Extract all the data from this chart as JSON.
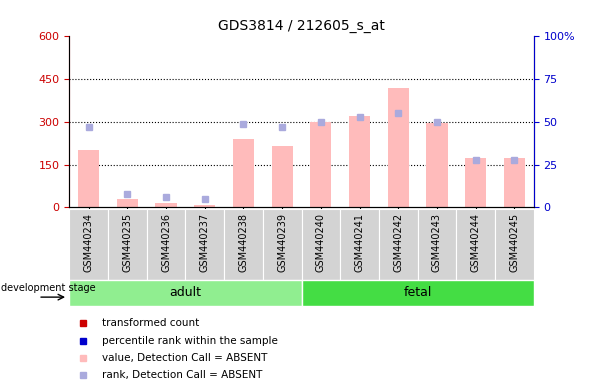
{
  "title": "GDS3814 / 212605_s_at",
  "samples": [
    "GSM440234",
    "GSM440235",
    "GSM440236",
    "GSM440237",
    "GSM440238",
    "GSM440239",
    "GSM440240",
    "GSM440241",
    "GSM440242",
    "GSM440243",
    "GSM440244",
    "GSM440245"
  ],
  "transformed_count": [
    200,
    30,
    15,
    10,
    240,
    215,
    300,
    320,
    420,
    295,
    175,
    175
  ],
  "percentile_rank": [
    47,
    8,
    6,
    5,
    49,
    47,
    50,
    53,
    55,
    50,
    28,
    28
  ],
  "groups": [
    {
      "label": "adult",
      "start": 0,
      "end": 6,
      "color": "#90ee90"
    },
    {
      "label": "fetal",
      "start": 6,
      "end": 12,
      "color": "#44dd44"
    }
  ],
  "bar_color_absent": "#ffbbbb",
  "rank_color_absent": "#aaaadd",
  "ylim_left": [
    0,
    600
  ],
  "ylim_right": [
    0,
    100
  ],
  "yticks_left": [
    0,
    150,
    300,
    450,
    600
  ],
  "yticks_right": [
    0,
    25,
    50,
    75,
    100
  ],
  "ytick_labels_left": [
    "0",
    "150",
    "300",
    "450",
    "600"
  ],
  "ytick_labels_right": [
    "0",
    "25",
    "50",
    "75",
    "100%"
  ],
  "grid_dotted_at": [
    150,
    300,
    450
  ],
  "left_axis_color": "#cc0000",
  "right_axis_color": "#0000cc",
  "dev_stage_label": "development stage",
  "legend_items": [
    {
      "label": "transformed count",
      "color": "#cc0000"
    },
    {
      "label": "percentile rank within the sample",
      "color": "#0000cc"
    },
    {
      "label": "value, Detection Call = ABSENT",
      "color": "#ffbbbb"
    },
    {
      "label": "rank, Detection Call = ABSENT",
      "color": "#aaaadd"
    }
  ]
}
